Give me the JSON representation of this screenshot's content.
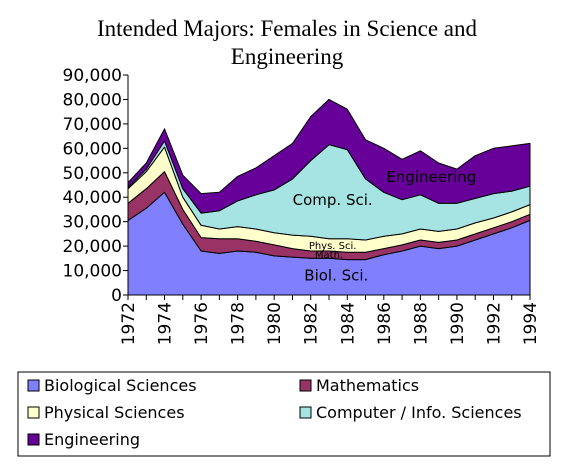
{
  "chart_data": {
    "type": "area",
    "stacked": true,
    "title_line1": "Intended Majors: Females in Science and",
    "title_line2": "Engineering",
    "x": [
      1972,
      1973,
      1974,
      1975,
      1976,
      1977,
      1978,
      1979,
      1980,
      1981,
      1982,
      1983,
      1984,
      1985,
      1986,
      1987,
      1988,
      1989,
      1990,
      1991,
      1992,
      1993,
      1994
    ],
    "x_tick_labels": [
      "1972",
      "1974",
      "1976",
      "1978",
      "1980",
      "1982",
      "1984",
      "1986",
      "1988",
      "1990",
      "1992",
      "1994"
    ],
    "ylim": [
      0,
      90000
    ],
    "y_tick_labels": [
      "0",
      "10,000",
      "20,000",
      "30,000",
      "40,000",
      "50,000",
      "60,000",
      "70,000",
      "80,000",
      "90,000"
    ],
    "grid": false,
    "legend_position": "bottom",
    "series": [
      {
        "name": "Biological Sciences",
        "color": "#8080ff",
        "values": [
          30500,
          35500,
          42000,
          29000,
          18000,
          17000,
          18000,
          17500,
          16000,
          15500,
          15000,
          15000,
          14500,
          14500,
          16500,
          18000,
          20000,
          19000,
          20000,
          22500,
          25000,
          27500,
          30500
        ]
      },
      {
        "name": "Mathematics",
        "color": "#993366",
        "values": [
          7000,
          8000,
          8500,
          6000,
          5500,
          6000,
          5000,
          4500,
          4500,
          3500,
          3000,
          3000,
          3000,
          3000,
          2500,
          2500,
          2500,
          2500,
          2500,
          2500,
          2500,
          2500,
          2500
        ]
      },
      {
        "name": "Physical Sciences",
        "color": "#ffffcc",
        "values": [
          6000,
          7000,
          10000,
          5000,
          5000,
          4000,
          5000,
          5000,
          5000,
          5500,
          6000,
          5000,
          5500,
          5000,
          5000,
          4500,
          4500,
          4500,
          4500,
          4500,
          4000,
          4000,
          4000
        ]
      },
      {
        "name": "Computer / Info. Sciences",
        "color": "#a6e3e3",
        "values": [
          500,
          1000,
          2500,
          3500,
          5000,
          7500,
          10500,
          14000,
          17500,
          23000,
          31000,
          38500,
          36500,
          25000,
          18000,
          14000,
          14000,
          11500,
          10500,
          10000,
          10000,
          8500,
          7500
        ]
      },
      {
        "name": "Engineering",
        "color": "#660099",
        "values": [
          2000,
          2500,
          5000,
          5500,
          8000,
          7500,
          10000,
          11000,
          14000,
          14500,
          18000,
          18500,
          16500,
          16000,
          18000,
          16500,
          18000,
          16500,
          14000,
          17500,
          18500,
          18500,
          17500
        ]
      }
    ],
    "annotations": [
      {
        "text": "Engineering",
        "series": "Engineering"
      },
      {
        "text": "Comp. Sci.",
        "series": "Computer / Info. Sciences"
      },
      {
        "text": "Phys. Sci.",
        "series": "Physical Sciences"
      },
      {
        "text": "Math.",
        "series": "Mathematics"
      },
      {
        "text": "Biol. Sci.",
        "series": "Biological Sciences"
      }
    ]
  }
}
